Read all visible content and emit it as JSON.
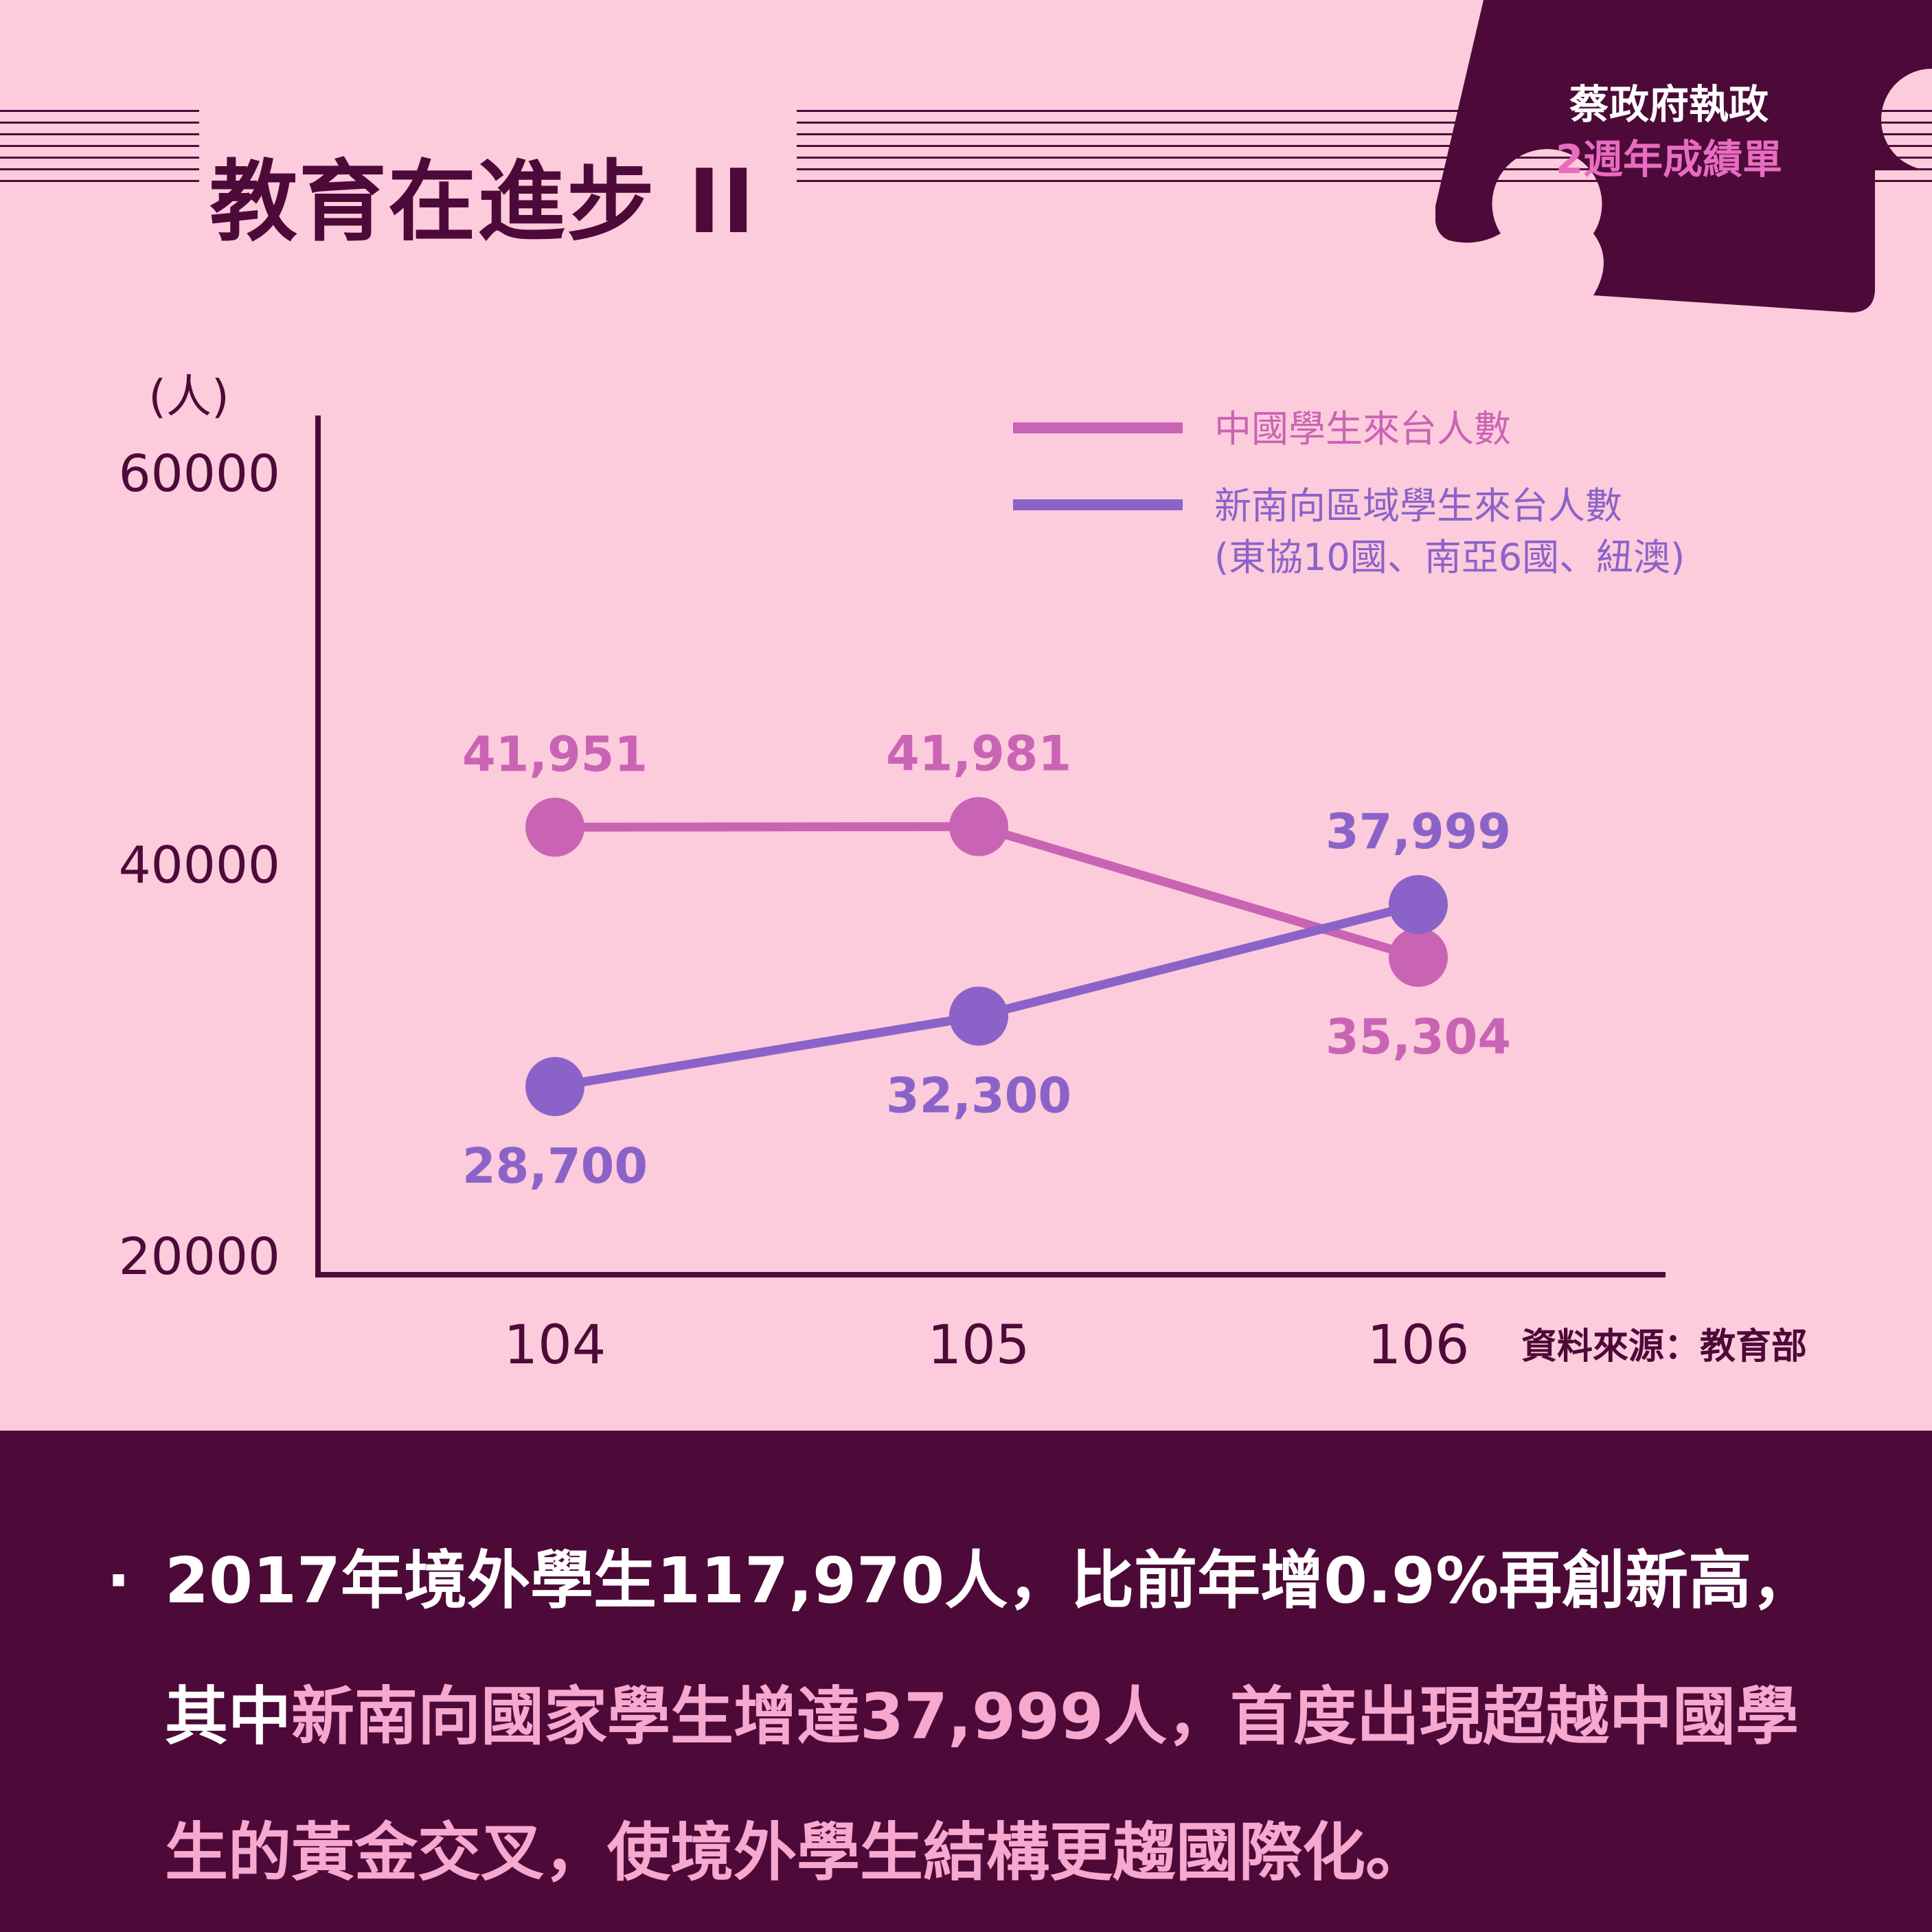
{
  "header": {
    "title": "教育在進步 II",
    "badge_line1": "蔡政府執政",
    "badge_line2": "2週年成績單"
  },
  "colors": {
    "background": "#fccbdc",
    "dark": "#4d0a38",
    "china_series": "#c964b4",
    "southbound_series": "#8b63c8",
    "footer_highlight": "#f7a8cf"
  },
  "chart_data": {
    "type": "line",
    "categories": [
      "104",
      "105",
      "106"
    ],
    "ylabel": "(人)",
    "ylim": [
      20000,
      60000
    ],
    "yticks": [
      20000,
      40000,
      60000
    ],
    "grid": false,
    "legend_position": "top-right",
    "series": [
      {
        "name": "中國學生來台人數",
        "name_line2": "",
        "values": [
          41951,
          41981,
          35304
        ],
        "labels": [
          "41,951",
          "41,981",
          "35,304"
        ],
        "label_side": [
          "above",
          "above",
          "below"
        ]
      },
      {
        "name": "新南向區域學生來台人數",
        "name_line2": "(東協10國、南亞6國、紐澳)",
        "values": [
          28700,
          32300,
          37999
        ],
        "labels": [
          "28,700",
          "32,300",
          "37,999"
        ],
        "label_side": [
          "below",
          "below",
          "above"
        ]
      }
    ]
  },
  "source": "資料來源：教育部",
  "footer": {
    "bullet": "·",
    "part1": "2017年境外學生117,970人，比前年增0.9%再創新高，其中",
    "part2": "新南向國家學生增達37,999人，首度出現超越中國學生的黃金交叉，使境外學生結構更趨國際化。"
  }
}
